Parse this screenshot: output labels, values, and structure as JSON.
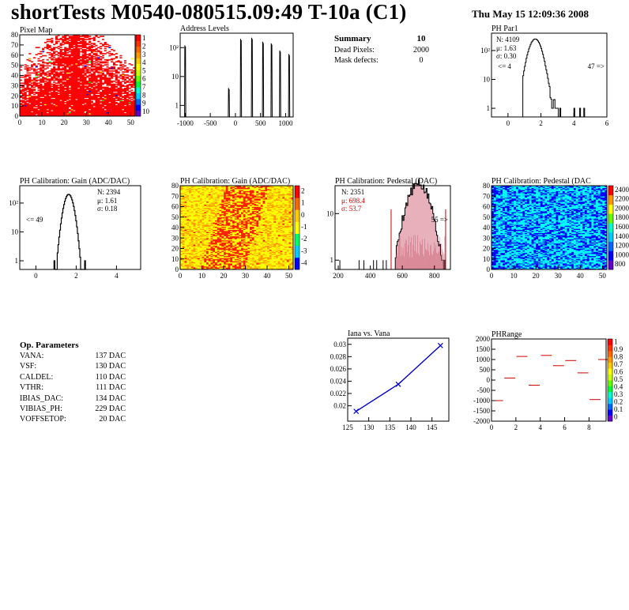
{
  "title": "shortTests M0540-080515.09:49 T-10a (C1)",
  "date": "Thu May 15 12:09:36 2008",
  "summary": {
    "header": "Summary",
    "header_value": "10",
    "rows": [
      {
        "label": "Dead Pixels:",
        "value": "2000"
      },
      {
        "label": "Mask defects:",
        "value": "0"
      }
    ]
  },
  "params": {
    "header": "Op. Parameters",
    "rows": [
      {
        "name": "VANA:",
        "value": "137 DAC"
      },
      {
        "name": "VSF:",
        "value": "130 DAC"
      },
      {
        "name": "CALDEL:",
        "value": "110 DAC"
      },
      {
        "name": "VTHR:",
        "value": "111 DAC"
      },
      {
        "name": "IBIAS_DAC:",
        "value": "134 DAC"
      },
      {
        "name": "VIBIAS_PH:",
        "value": "229 DAC"
      },
      {
        "name": "VOFFSETOP:",
        "value": "20 DAC"
      }
    ]
  },
  "colors": {
    "red": "#ff0000",
    "yellow": "#ffff00",
    "cyan": "#00ffff",
    "blue": "#0000ff",
    "series_blue": "#0000cc",
    "pedestal_red": "#cc0000",
    "pedestal_fill": "#cc6677"
  },
  "chart_data": [
    {
      "id": "pixel-map",
      "type": "heatmap",
      "title": "Pixel Map",
      "xlim": [
        0,
        52
      ],
      "ylim": [
        0,
        80
      ],
      "xticks": [
        "0",
        "10",
        "20",
        "30",
        "40",
        "50"
      ],
      "yticks": [
        "0",
        "10",
        "20",
        "30",
        "40",
        "50",
        "60",
        "70",
        "80"
      ],
      "zticks": [
        "1",
        "2",
        "3",
        "4",
        "5",
        "6",
        "7",
        "8",
        "9",
        "10"
      ],
      "pattern": "mostly red (max) with sparse dead/low pixels increasing toward the top and edges"
    },
    {
      "id": "address-levels",
      "type": "line",
      "title": "Address Levels",
      "log_y": true,
      "xlim": [
        -1100,
        1150
      ],
      "xticks": [
        "-1000",
        "-500",
        "0",
        "500",
        "1000"
      ],
      "yticks": [
        "1",
        "10",
        "10²"
      ],
      "peaks_x": [
        -1000,
        -130,
        110,
        330,
        550,
        720,
        890,
        1070
      ],
      "peak_heights": [
        120,
        4,
        200,
        220,
        160,
        140,
        80,
        60
      ]
    },
    {
      "id": "ph-par1",
      "type": "bar",
      "title": "PH Par1",
      "log_y": true,
      "xlim": [
        -1,
        6
      ],
      "xticks": [
        "0",
        "2",
        "4",
        "6"
      ],
      "yticks": [
        "1",
        "10",
        "10²"
      ],
      "stats": {
        "N": "4109",
        "mean": "1.63",
        "sigma": "0.30"
      },
      "underflow": "<= 4",
      "overflow": "47 =>"
    },
    {
      "id": "gain-1d",
      "type": "bar",
      "title": "PH Calibration: Gain (ADC/DAC)",
      "log_y": true,
      "xlim": [
        -0.8,
        5.2
      ],
      "xticks": [
        "0",
        "2",
        "4"
      ],
      "yticks": [
        "1",
        "10",
        "10²"
      ],
      "stats": {
        "N": "2394",
        "mean": "1.61",
        "sigma": "0.18"
      },
      "underflow": "<= 49"
    },
    {
      "id": "gain-map",
      "type": "heatmap",
      "title": "PH Calibration: Gain (ADC/DAC)",
      "xlim": [
        0,
        52
      ],
      "ylim": [
        0,
        80
      ],
      "xticks": [
        "0",
        "10",
        "20",
        "30",
        "40",
        "50"
      ],
      "yticks": [
        "0",
        "10",
        "20",
        "30",
        "40",
        "50",
        "60",
        "70",
        "80"
      ],
      "zticks": [
        "2",
        "1",
        "0",
        "-1",
        "-2",
        "-3",
        "-4"
      ],
      "pattern": "yellow/orange background with red diagonal band"
    },
    {
      "id": "pedestal-1d",
      "type": "bar",
      "title": "PH Calibration: Pedestal (DAC)",
      "log_y": true,
      "xlim": [
        180,
        900
      ],
      "xticks": [
        "200",
        "400",
        "600",
        "800"
      ],
      "yticks": [
        "1",
        "10"
      ],
      "stats": {
        "N": "2351",
        "mean": "698.4",
        "sigma": "53.7"
      },
      "overflow": "55 =>"
    },
    {
      "id": "pedestal-map",
      "type": "heatmap",
      "title": "PH Calibration: Pedestal (DAC",
      "xlim": [
        0,
        52
      ],
      "ylim": [
        0,
        80
      ],
      "xticks": [
        "0",
        "10",
        "20",
        "30",
        "40",
        "50"
      ],
      "yticks": [
        "0",
        "10",
        "20",
        "30",
        "40",
        "50",
        "60",
        "70",
        "80"
      ],
      "zticks": [
        "2400",
        "2200",
        "2000",
        "1800",
        "1600",
        "1400",
        "1200",
        "1000",
        "800"
      ],
      "pattern": "cyan background with scattered blue pixels"
    },
    {
      "id": "iana-vs-vana",
      "type": "line",
      "title": "Iana vs. Vana",
      "x": [
        127,
        137,
        147
      ],
      "y": [
        0.0191,
        0.0235,
        0.0298
      ],
      "xlim": [
        125,
        149
      ],
      "ylim": [
        0.0175,
        0.031
      ],
      "xticks": [
        "125",
        "130",
        "135",
        "140",
        "145"
      ],
      "yticks": [
        "0.02",
        "0.022",
        "0.024",
        "0.026",
        "0.028",
        "0.03"
      ]
    },
    {
      "id": "ph-range",
      "type": "scatter",
      "title": "PHRange",
      "xlim": [
        0,
        9.4
      ],
      "ylim": [
        -2000,
        2000
      ],
      "xticks": [
        "0",
        "2",
        "4",
        "6",
        "8"
      ],
      "yticks": [
        "-2000",
        "-1500",
        "-1000",
        "-500",
        "0",
        "500",
        "1000",
        "1500",
        "2000"
      ],
      "zticks": [
        "1",
        "0.9",
        "0.8",
        "0.7",
        "0.6",
        "0.5",
        "0.4",
        "0.3",
        "0.2",
        "0.1",
        "0"
      ],
      "segments": [
        {
          "x": 0.5,
          "y": -1000
        },
        {
          "x": 1.5,
          "y": 100
        },
        {
          "x": 2.5,
          "y": 1150
        },
        {
          "x": 3.5,
          "y": -250
        },
        {
          "x": 4.5,
          "y": 1200
        },
        {
          "x": 5.5,
          "y": 700
        },
        {
          "x": 6.5,
          "y": 950
        },
        {
          "x": 7.5,
          "y": 350
        },
        {
          "x": 8.5,
          "y": -950
        },
        {
          "x": 9.2,
          "y": 1000
        }
      ]
    }
  ]
}
